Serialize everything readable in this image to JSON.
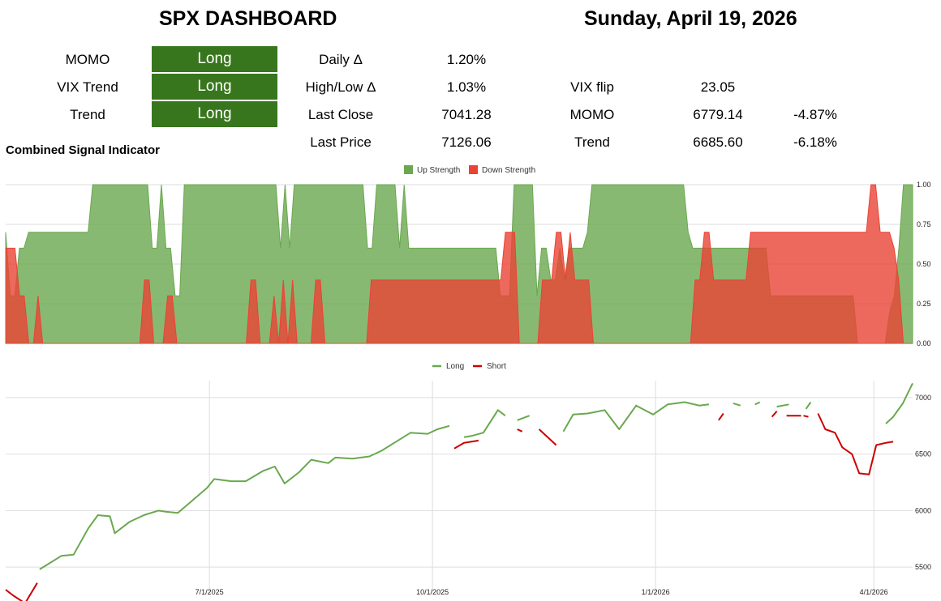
{
  "header": {
    "title": "SPX DASHBOARD",
    "date": "Sunday, April 19, 2026"
  },
  "signals": [
    {
      "label": "MOMO",
      "value": "Long"
    },
    {
      "label": "VIX Trend",
      "value": "Long"
    },
    {
      "label": "Trend",
      "value": "Long"
    }
  ],
  "stats": {
    "daily_label": "Daily Δ",
    "daily_value": "1.20%",
    "highlow_label": "High/Low Δ",
    "highlow_value": "1.03%",
    "lastclose_label": "Last Close",
    "lastclose_value": "7041.28",
    "lastprice_label": "Last Price",
    "lastprice_value": "7126.06",
    "vixflip_label": "VIX flip",
    "vixflip_value": "23.05",
    "momo_label": "MOMO",
    "momo_value": "6779.14",
    "momo_pct": "-4.87%",
    "trend_label": "Trend",
    "trend_value": "6685.60",
    "trend_pct": "-6.18%"
  },
  "section_label": "Combined Signal Indicator",
  "colors": {
    "badge": "#38761d",
    "up": "#6aa84f",
    "down": "#ea4335",
    "long_line": "#6aa84f",
    "short_line": "#cc0000"
  },
  "chart_data": [
    {
      "type": "area",
      "legend": [
        "Up Strength",
        "Down Strength"
      ],
      "legend_position": "top-center",
      "ylim": [
        0,
        1
      ],
      "yticks": [
        "1.00",
        "0.75",
        "0.50",
        "0.25",
        "0.00"
      ],
      "grid": true,
      "series": [
        {
          "name": "Up Strength",
          "values": [
            0.7,
            0.3,
            0.3,
            0.6,
            0.6,
            0.7,
            0.7,
            0.7,
            0.7,
            0.7,
            0.7,
            0.7,
            0.7,
            0.7,
            0.7,
            0.7,
            0.7,
            0.7,
            0.7,
            1.0,
            1.0,
            1.0,
            1.0,
            1.0,
            1.0,
            1.0,
            1.0,
            1.0,
            1.0,
            1.0,
            1.0,
            1.0,
            0.6,
            0.6,
            1.0,
            0.6,
            0.6,
            0.3,
            0.3,
            1.0,
            1.0,
            1.0,
            1.0,
            1.0,
            1.0,
            1.0,
            1.0,
            1.0,
            1.0,
            1.0,
            1.0,
            1.0,
            1.0,
            1.0,
            1.0,
            1.0,
            1.0,
            1.0,
            1.0,
            1.0,
            0.6,
            1.0,
            0.6,
            1.0,
            1.0,
            1.0,
            1.0,
            1.0,
            1.0,
            1.0,
            1.0,
            1.0,
            1.0,
            1.0,
            1.0,
            1.0,
            1.0,
            1.0,
            1.0,
            0.6,
            0.6,
            1.0,
            1.0,
            1.0,
            1.0,
            1.0,
            0.6,
            1.0,
            0.6,
            0.6,
            0.6,
            0.6,
            0.6,
            0.6,
            0.6,
            0.6,
            0.6,
            0.6,
            0.6,
            0.6,
            0.6,
            0.6,
            0.6,
            0.6,
            0.6,
            0.6,
            0.6,
            0.6,
            0.3,
            0.3,
            0.3,
            1.0,
            1.0,
            1.0,
            1.0,
            1.0,
            0.3,
            0.6,
            0.6,
            0.4,
            0.4,
            0.6,
            0.4,
            0.6,
            0.6,
            0.6,
            0.6,
            0.7,
            1.0,
            1.0,
            1.0,
            1.0,
            1.0,
            1.0,
            1.0,
            1.0,
            1.0,
            1.0,
            1.0,
            1.0,
            1.0,
            1.0,
            1.0,
            1.0,
            1.0,
            1.0,
            1.0,
            1.0,
            1.0,
            0.7,
            0.6,
            0.6,
            0.6,
            0.6,
            0.6,
            0.6,
            0.6,
            0.6,
            0.6,
            0.6,
            0.6,
            0.6,
            0.6,
            0.6,
            0.6,
            0.6,
            0.6,
            0.3,
            0.3,
            0.3,
            0.3,
            0.3,
            0.3,
            0.3,
            0.3,
            0.3,
            0.3,
            0.3,
            0.3,
            0.3,
            0.3,
            0.3,
            0.3,
            0.3,
            0.3,
            0.3,
            0.0,
            0.0,
            0.0,
            0.0,
            0.0,
            0.0,
            0.0,
            0.2,
            0.3,
            0.6,
            1.0,
            1.0,
            1.0
          ]
        },
        {
          "name": "Down Strength",
          "values": [
            0.6,
            0.6,
            0.6,
            0.3,
            0.3,
            0.0,
            0.0,
            0.3,
            0.0,
            0.0,
            0.0,
            0.0,
            0.0,
            0.0,
            0.0,
            0.0,
            0.0,
            0.0,
            0.0,
            0.0,
            0.0,
            0.0,
            0.0,
            0.0,
            0.0,
            0.0,
            0.0,
            0.0,
            0.0,
            0.0,
            0.4,
            0.4,
            0.0,
            0.0,
            0.0,
            0.3,
            0.3,
            0.0,
            0.0,
            0.0,
            0.0,
            0.0,
            0.0,
            0.0,
            0.0,
            0.0,
            0.0,
            0.0,
            0.0,
            0.0,
            0.0,
            0.0,
            0.0,
            0.4,
            0.4,
            0.0,
            0.0,
            0.0,
            0.3,
            0.0,
            0.4,
            0.0,
            0.4,
            0.0,
            0.0,
            0.0,
            0.0,
            0.4,
            0.4,
            0.0,
            0.0,
            0.0,
            0.0,
            0.0,
            0.0,
            0.0,
            0.0,
            0.0,
            0.0,
            0.4,
            0.4,
            0.4,
            0.4,
            0.4,
            0.4,
            0.4,
            0.4,
            0.4,
            0.4,
            0.4,
            0.4,
            0.4,
            0.4,
            0.4,
            0.4,
            0.4,
            0.4,
            0.4,
            0.4,
            0.4,
            0.4,
            0.4,
            0.4,
            0.4,
            0.4,
            0.4,
            0.4,
            0.4,
            0.7,
            0.7,
            0.7,
            0.0,
            0.0,
            0.0,
            0.0,
            0.0,
            0.4,
            0.4,
            0.4,
            0.7,
            0.7,
            0.4,
            0.7,
            0.4,
            0.4,
            0.4,
            0.4,
            0.0,
            0.0,
            0.0,
            0.0,
            0.0,
            0.0,
            0.0,
            0.0,
            0.0,
            0.0,
            0.0,
            0.0,
            0.0,
            0.0,
            0.0,
            0.0,
            0.0,
            0.0,
            0.0,
            0.0,
            0.0,
            0.0,
            0.4,
            0.4,
            0.7,
            0.7,
            0.4,
            0.4,
            0.4,
            0.4,
            0.4,
            0.4,
            0.4,
            0.4,
            0.7,
            0.7,
            0.7,
            0.7,
            0.7,
            0.7,
            0.7,
            0.7,
            0.7,
            0.7,
            0.7,
            0.7,
            0.7,
            0.7,
            0.7,
            0.7,
            0.7,
            0.7,
            0.7,
            0.7,
            0.7,
            0.7,
            0.7,
            0.7,
            0.7,
            0.7,
            1.0,
            1.0,
            0.7,
            0.7,
            0.7,
            0.6,
            0.4,
            0.0,
            0.0,
            0.0
          ]
        }
      ]
    },
    {
      "type": "line",
      "legend": [
        "Long",
        "Short"
      ],
      "legend_position": "top-center",
      "ylim": [
        5200,
        7150
      ],
      "yticks": [
        5500,
        6000,
        6500,
        7000
      ],
      "xticks": [
        "7/1/2025",
        "10/1/2025",
        "1/1/2026",
        "4/1/2026"
      ],
      "grid": true,
      "x_range": [
        "2025-04-08",
        "2026-04-17"
      ],
      "series": [
        {
          "name": "Long",
          "segments": [
            [
              [
                "2025-04-22",
                5480
              ],
              [
                "2025-04-25",
                5520
              ],
              [
                "2025-05-01",
                5600
              ],
              [
                "2025-05-06",
                5610
              ],
              [
                "2025-05-12",
                5840
              ],
              [
                "2025-05-16",
                5960
              ],
              [
                "2025-05-21",
                5950
              ],
              [
                "2025-05-23",
                5800
              ],
              [
                "2025-05-29",
                5900
              ],
              [
                "2025-06-04",
                5960
              ],
              [
                "2025-06-10",
                6000
              ],
              [
                "2025-06-13",
                5990
              ],
              [
                "2025-06-18",
                5980
              ],
              [
                "2025-06-24",
                6090
              ],
              [
                "2025-06-30",
                6200
              ],
              [
                "2025-07-03",
                6280
              ],
              [
                "2025-07-10",
                6260
              ],
              [
                "2025-07-16",
                6260
              ],
              [
                "2025-07-23",
                6350
              ],
              [
                "2025-07-28",
                6390
              ],
              [
                "2025-08-01",
                6240
              ],
              [
                "2025-08-07",
                6340
              ],
              [
                "2025-08-12",
                6450
              ],
              [
                "2025-08-19",
                6420
              ],
              [
                "2025-08-22",
                6470
              ],
              [
                "2025-08-29",
                6460
              ],
              [
                "2025-09-05",
                6480
              ],
              [
                "2025-09-10",
                6530
              ],
              [
                "2025-09-16",
                6610
              ],
              [
                "2025-09-22",
                6690
              ],
              [
                "2025-09-29",
                6680
              ],
              [
                "2025-10-03",
                6720
              ],
              [
                "2025-10-08",
                6750
              ]
            ],
            [
              [
                "2025-10-14",
                6650
              ],
              [
                "2025-10-17",
                6660
              ],
              [
                "2025-10-22",
                6690
              ],
              [
                "2025-10-28",
                6890
              ],
              [
                "2025-10-31",
                6840
              ]
            ],
            [
              [
                "2025-11-05",
                6800
              ],
              [
                "2025-11-10",
                6840
              ]
            ],
            [
              [
                "2025-11-24",
                6700
              ],
              [
                "2025-11-28",
                6850
              ],
              [
                "2025-12-04",
                6860
              ],
              [
                "2025-12-11",
                6890
              ],
              [
                "2025-12-17",
                6720
              ],
              [
                "2025-12-24",
                6930
              ],
              [
                "2025-12-31",
                6850
              ],
              [
                "2026-01-06",
                6940
              ],
              [
                "2026-01-13",
                6960
              ],
              [
                "2026-01-19",
                6930
              ],
              [
                "2026-01-23",
                6940
              ]
            ],
            [
              [
                "2026-02-02",
                6950
              ],
              [
                "2026-02-05",
                6930
              ]
            ],
            [
              [
                "2026-02-11",
                6940
              ],
              [
                "2026-02-13",
                6960
              ]
            ],
            [
              [
                "2026-02-20",
                6920
              ],
              [
                "2026-02-25",
                6940
              ]
            ],
            [
              [
                "2026-03-04",
                6900
              ],
              [
                "2026-03-06",
                6960
              ]
            ],
            [
              [
                "2026-04-06",
                6770
              ],
              [
                "2026-04-09",
                6830
              ],
              [
                "2026-04-13",
                6950
              ],
              [
                "2026-04-17",
                7126
              ]
            ]
          ]
        },
        {
          "name": "Short",
          "segments": [
            [
              [
                "2025-04-08",
                5300
              ],
              [
                "2025-04-11",
                5250
              ],
              [
                "2025-04-16",
                5180
              ],
              [
                "2025-04-21",
                5360
              ]
            ],
            [
              [
                "2025-10-10",
                6550
              ],
              [
                "2025-10-14",
                6600
              ],
              [
                "2025-10-20",
                6620
              ]
            ],
            [
              [
                "2025-11-05",
                6720
              ],
              [
                "2025-11-07",
                6700
              ]
            ],
            [
              [
                "2025-11-14",
                6720
              ],
              [
                "2025-11-18",
                6640
              ],
              [
                "2025-11-21",
                6580
              ]
            ],
            [
              [
                "2026-01-27",
                6800
              ],
              [
                "2026-01-29",
                6860
              ]
            ],
            [
              [
                "2026-02-18",
                6830
              ],
              [
                "2026-02-20",
                6880
              ]
            ],
            [
              [
                "2026-02-24",
                6840
              ],
              [
                "2026-03-02",
                6840
              ]
            ],
            [
              [
                "2026-03-03",
                6840
              ],
              [
                "2026-03-05",
                6830
              ]
            ],
            [
              [
                "2026-03-09",
                6860
              ],
              [
                "2026-03-12",
                6720
              ],
              [
                "2026-03-16",
                6690
              ],
              [
                "2026-03-19",
                6560
              ],
              [
                "2026-03-23",
                6500
              ],
              [
                "2026-03-26",
                6330
              ],
              [
                "2026-03-30",
                6320
              ],
              [
                "2026-04-02",
                6580
              ],
              [
                "2026-04-06",
                6600
              ],
              [
                "2026-04-09",
                6610
              ]
            ]
          ]
        }
      ]
    }
  ]
}
